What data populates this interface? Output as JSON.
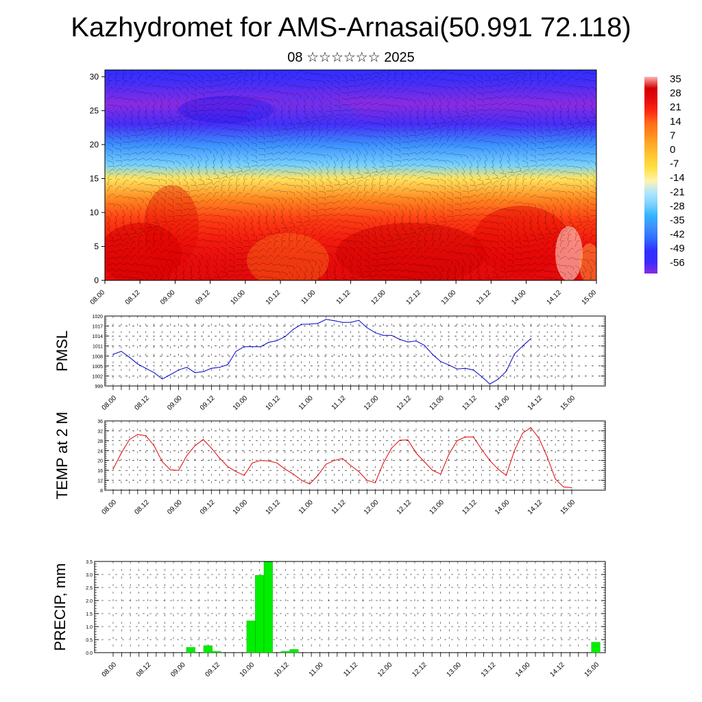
{
  "header": {
    "title": "Kazhydromet for AMS-Arnasai(50.991 72.118)",
    "subtitle": "08 ☆☆☆☆☆☆ 2025"
  },
  "time_labels": [
    "08.00",
    "08.12",
    "09.00",
    "09.12",
    "10.00",
    "10.12",
    "11.00",
    "11.12",
    "12.00",
    "12.12",
    "13.00",
    "13.12",
    "14.00",
    "14.12",
    "15.00"
  ],
  "chart_data": [
    {
      "type": "heatmap",
      "ylim": [
        0,
        31
      ],
      "y_ticks": [
        "0",
        "5",
        "10",
        "15",
        "20",
        "25",
        "30"
      ],
      "colorbar_labels": [
        "35",
        "28",
        "21",
        "14",
        "7",
        "0",
        "-7",
        "-14",
        "-21",
        "-28",
        "-35",
        "-42",
        "-49",
        "-56"
      ],
      "colorscale": [
        "#8a2be2",
        "#2f2fff",
        "#3f7fff",
        "#31b5ff",
        "#aee7ff",
        "#fff3b0",
        "#ffe24a",
        "#ffae2a",
        "#ff6b1a",
        "#ff2a10",
        "#e80c0c",
        "#d30000",
        "#ffb3b3"
      ],
      "annotation": "wind barbs overlay",
      "temperature_profile": [
        {
          "height": 0,
          "t": 24
        },
        {
          "height": 3,
          "t": 22
        },
        {
          "height": 6,
          "t": 18
        },
        {
          "height": 9,
          "t": 12
        },
        {
          "height": 12,
          "t": 4
        },
        {
          "height": 15,
          "t": -8
        },
        {
          "height": 17,
          "t": -20
        },
        {
          "height": 20,
          "t": -34
        },
        {
          "height": 23,
          "t": -52
        },
        {
          "height": 26,
          "t": -58
        },
        {
          "height": 29,
          "t": -52
        },
        {
          "height": 31,
          "t": -50
        }
      ]
    },
    {
      "type": "line",
      "ylabel": "PMSL",
      "ylim": [
        999,
        1020
      ],
      "y_ticks": [
        "999",
        "1002",
        "1005",
        "1008",
        "1011",
        "1014",
        "1017",
        "1020"
      ],
      "series": [
        {
          "color": "#0000cc",
          "x": [
            0,
            3,
            6,
            9,
            12,
            15,
            18,
            21,
            24,
            27,
            30,
            33,
            36,
            39,
            42,
            45,
            48,
            51,
            54,
            57,
            60,
            63,
            66,
            69,
            72,
            75,
            78,
            81,
            84,
            87,
            90,
            93,
            96,
            99,
            102,
            105,
            108,
            111,
            114,
            117,
            120,
            123,
            126,
            129,
            132,
            135,
            138,
            141,
            144,
            147,
            150,
            153,
            156,
            159,
            162,
            165,
            168
          ],
          "values": [
            1008.5,
            1009.4,
            1007.6,
            1005.6,
            1004.3,
            1003.0,
            1001.1,
            1002.4,
            1003.8,
            1004.6,
            1003.0,
            1003.3,
            1004.3,
            1004.6,
            1005.4,
            1009.4,
            1010.8,
            1010.8,
            1010.8,
            1012.1,
            1012.6,
            1013.8,
            1016.0,
            1017.5,
            1017.6,
            1017.8,
            1019.0,
            1018.6,
            1018.1,
            1018.1,
            1018.7,
            1016.5,
            1015.0,
            1014.2,
            1014.2,
            1013.0,
            1012.2,
            1012.5,
            1011.2,
            1008.5,
            1006.3,
            1005.3,
            1004.1,
            1004.3,
            1003.8,
            1001.8,
            999.6,
            1001.0,
            1003.4,
            1008.6,
            1011.0,
            1013.2,
            null,
            null,
            null,
            null,
            null
          ]
        }
      ]
    },
    {
      "type": "line",
      "ylabel": "TEMP at 2 M",
      "ylim": [
        8,
        36
      ],
      "y_ticks": [
        "8",
        "12",
        "16",
        "20",
        "24",
        "28",
        "32",
        "36"
      ],
      "series": [
        {
          "color": "#e00000",
          "x": [
            0,
            3,
            6,
            9,
            12,
            15,
            18,
            21,
            24,
            27,
            30,
            33,
            36,
            39,
            42,
            45,
            48,
            51,
            54,
            57,
            60,
            63,
            66,
            69,
            72,
            75,
            78,
            81,
            84,
            87,
            90,
            93,
            96,
            99,
            102,
            105,
            108,
            111,
            114,
            117,
            120,
            123,
            126,
            129,
            132,
            135,
            138,
            141,
            144,
            147,
            150,
            153,
            156,
            159,
            162,
            165,
            168
          ],
          "values": [
            16.5,
            23.0,
            28.5,
            30.5,
            30.0,
            26.0,
            19.5,
            16.2,
            16.0,
            22.0,
            26.0,
            28.5,
            25.0,
            21.0,
            17.5,
            15.5,
            14.0,
            19.0,
            20.0,
            19.8,
            19.0,
            16.5,
            14.5,
            12.0,
            10.5,
            14.0,
            18.5,
            20.0,
            20.8,
            18.0,
            15.5,
            12.0,
            11.0,
            19.0,
            25.0,
            28.2,
            28.3,
            23.0,
            19.5,
            16.0,
            14.5,
            22.5,
            28.0,
            29.5,
            29.5,
            24.5,
            20.0,
            16.5,
            14.0,
            24.0,
            31.0,
            33.3,
            29.0,
            21.5,
            12.5,
            9.3,
            9.0
          ]
        }
      ]
    },
    {
      "type": "bar",
      "ylabel": "PRECIP, mm",
      "ylim": [
        0,
        3.5
      ],
      "y_ticks": [
        "0.0",
        "0.5",
        "1.0",
        "1.5",
        "2.0",
        "2.5",
        "3.0",
        "3.5"
      ],
      "color": "#00ee00",
      "bars": [
        {
          "x": 27,
          "value": 0.2
        },
        {
          "x": 33,
          "value": 0.27
        },
        {
          "x": 36,
          "value": 0.05
        },
        {
          "x": 48,
          "value": 1.22
        },
        {
          "x": 51,
          "value": 2.97
        },
        {
          "x": 54,
          "value": 3.48
        },
        {
          "x": 60,
          "value": 0.05
        },
        {
          "x": 63,
          "value": 0.12
        },
        {
          "x": 168,
          "value": 0.4
        }
      ]
    }
  ]
}
